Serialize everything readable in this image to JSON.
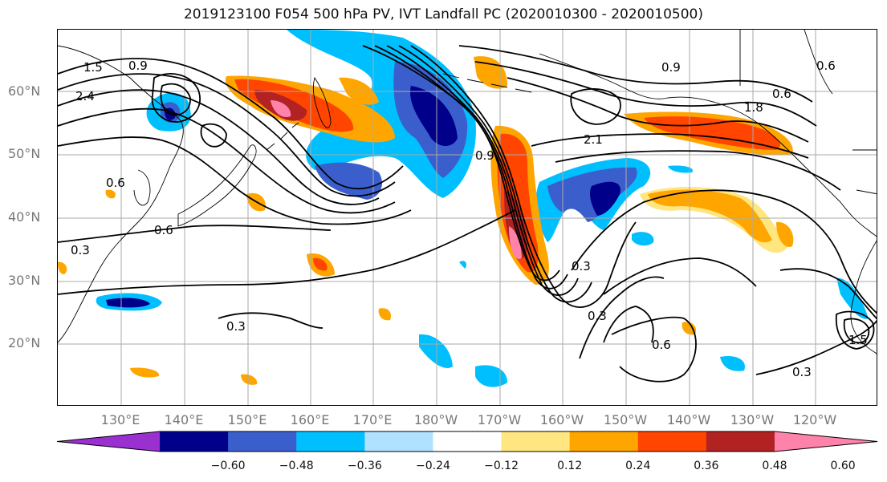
{
  "title": "2019123100 F054 500 hPa PV, IVT Landfall PC (2020010300 - 2020010500)",
  "lat_labels": [
    "60°N",
    "50°N",
    "40°N",
    "30°N",
    "20°N"
  ],
  "lon_labels": [
    "130°E",
    "140°E",
    "150°E",
    "160°E",
    "170°E",
    "180°W",
    "170°W",
    "160°W",
    "150°W",
    "140°W",
    "130°W",
    "120°W"
  ],
  "colorbar": {
    "ticks": [
      "−0.60",
      "−0.48",
      "−0.36",
      "−0.24",
      "−0.12",
      "0.12",
      "0.24",
      "0.36",
      "0.48",
      "0.60"
    ],
    "colors": [
      "#9b30d0",
      "#00008b",
      "#3a5fcd",
      "#00bfff",
      "#b0e2ff",
      "#ffffff",
      "#ffe680",
      "#ffa500",
      "#ff4500",
      "#b22222",
      "#ff82ab"
    ]
  },
  "contour_labels": [
    "1.5",
    "0.9",
    "2.4",
    "0.6",
    "0.6",
    "0.3",
    "0.3",
    "0.9",
    "0.6",
    "1.8",
    "2.1",
    "0.6",
    "0.3",
    "0.3",
    "0.6",
    "0.3",
    "1.5",
    "0.9"
  ]
}
